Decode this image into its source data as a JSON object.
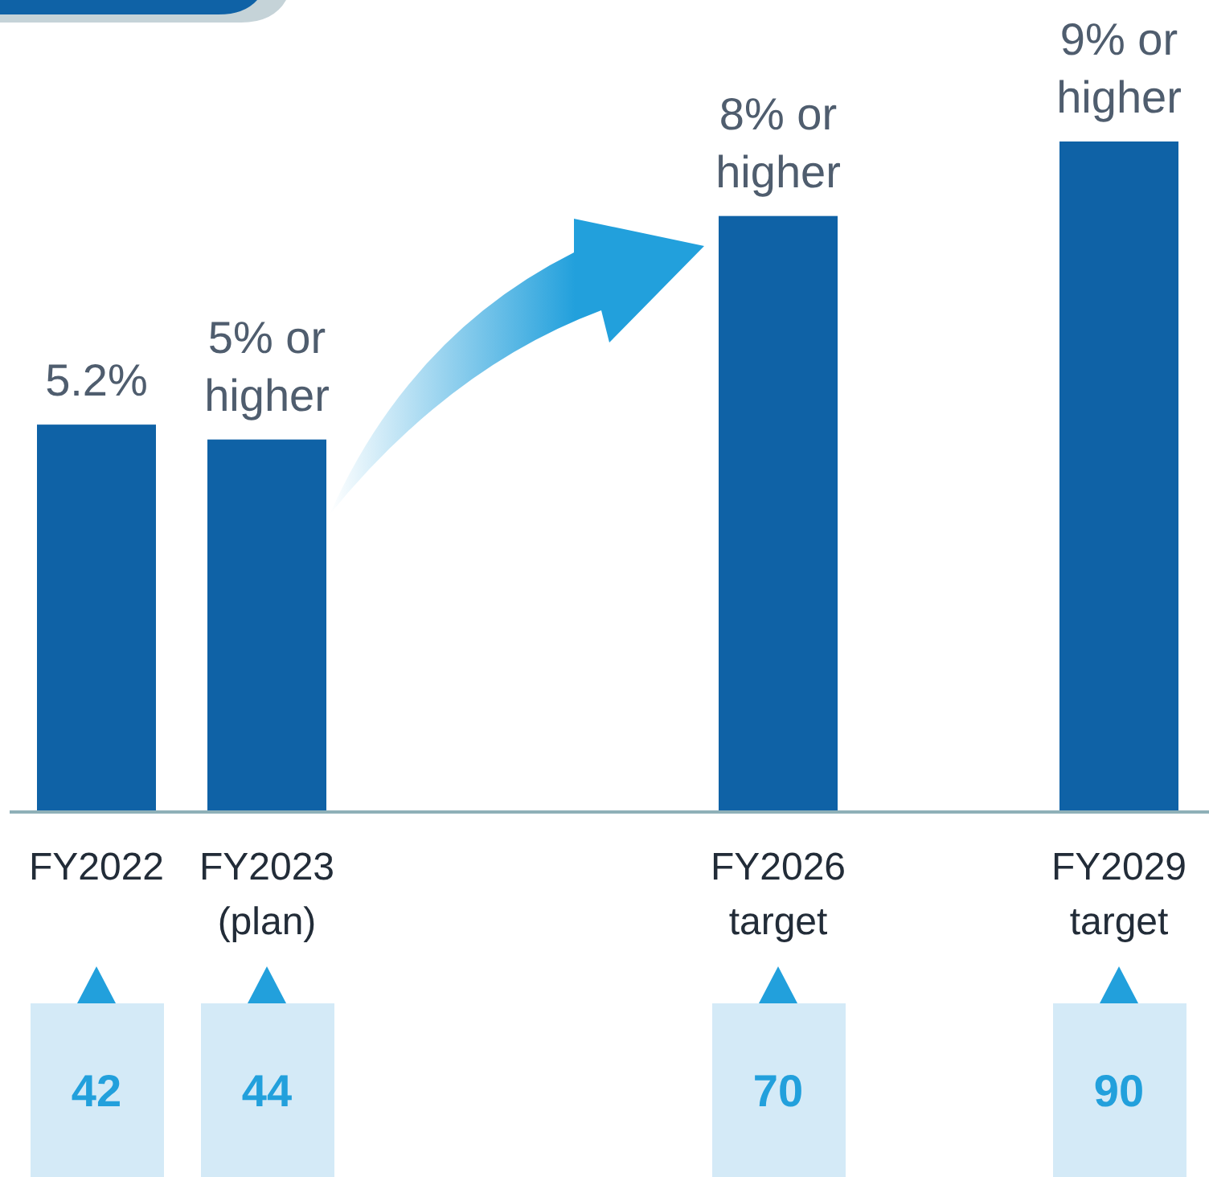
{
  "chart_data": {
    "type": "bar",
    "categories": [
      "FY2022",
      "FY2023\n(plan)",
      null,
      null,
      "FY2026\ntarget",
      null,
      "FY2029\ntarget"
    ],
    "values": [
      5.2,
      5,
      null,
      null,
      8,
      null,
      9
    ],
    "color": "#0f62a6",
    "value_labels": [
      "5.2%",
      "5% or\nhigher",
      null,
      null,
      "8% or\nhigher",
      null,
      "9% or\nhigher"
    ],
    "annotations": [
      "42",
      "44",
      "70",
      "90"
    ]
  }
}
